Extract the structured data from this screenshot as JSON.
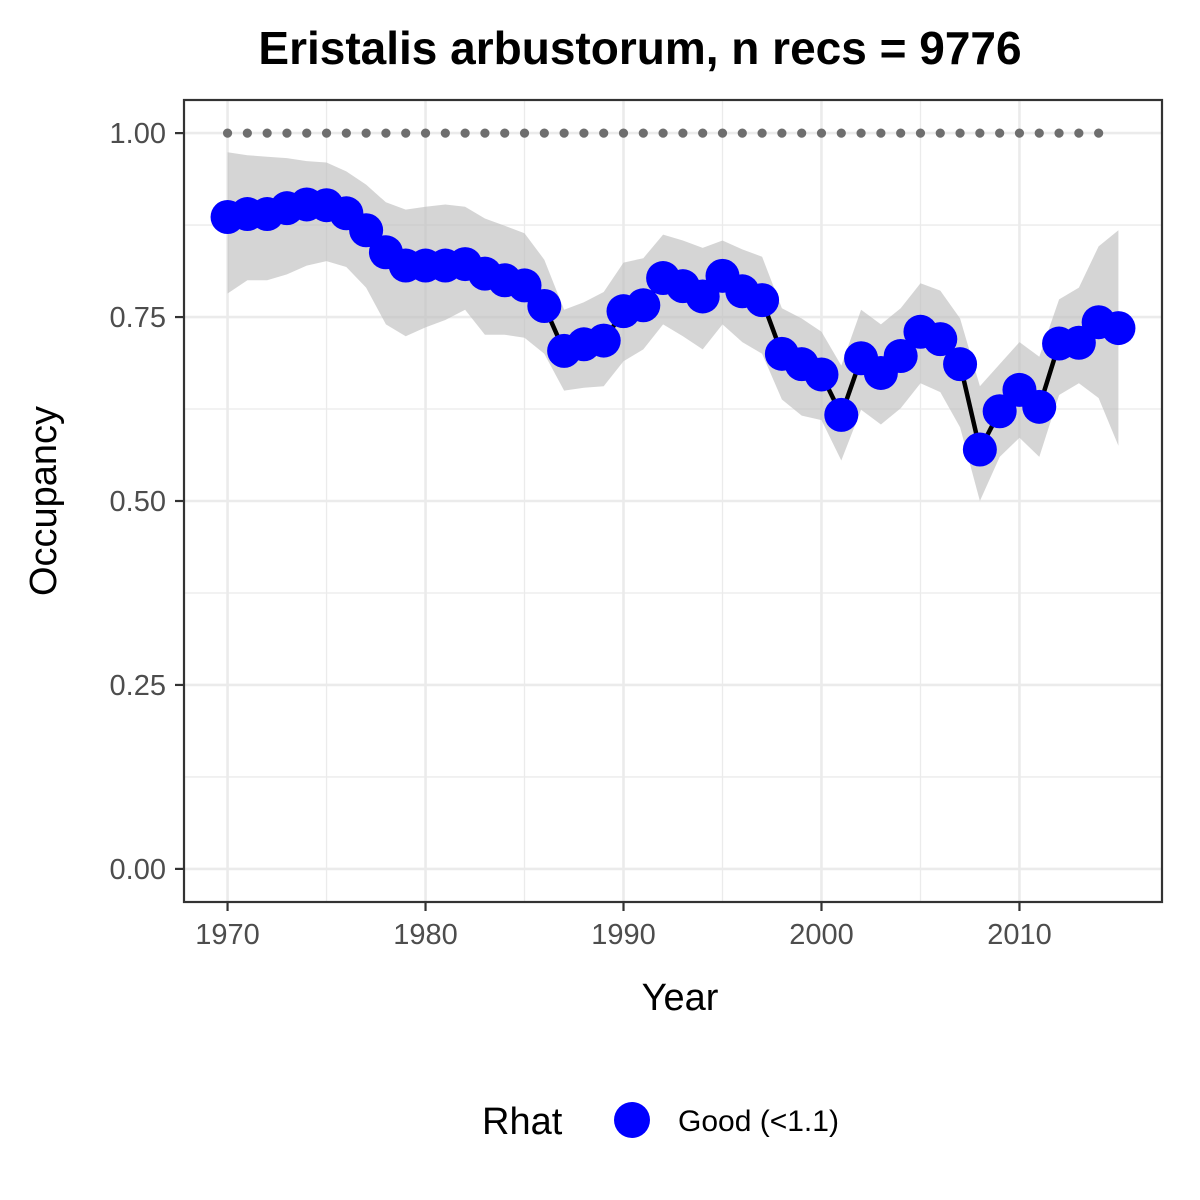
{
  "chart_data": {
    "type": "line",
    "title": "Eristalis arbustorum, n recs = 9776",
    "xlabel": "Year",
    "ylabel": "Occupancy",
    "xlim": [
      1967.8,
      2017.2
    ],
    "ylim": [
      -0.045,
      1.045
    ],
    "x_ticks": [
      1970,
      1980,
      1990,
      2000,
      2010
    ],
    "x_tick_labels": [
      "1970",
      "1980",
      "1990",
      "2000",
      "2010"
    ],
    "y_ticks": [
      0,
      0.25,
      0.5,
      0.75,
      1.0
    ],
    "y_tick_labels": [
      "0.00",
      "0.25",
      "0.50",
      "0.75",
      "1.00"
    ],
    "grid": true,
    "legend": {
      "title": "Rhat",
      "position": "bottom",
      "entries": [
        {
          "label": "Good (<1.1)",
          "color": "#0000ff"
        }
      ]
    },
    "colors": {
      "points": "#0000ff",
      "line": "#000000",
      "ribbon": "#bfbfbf",
      "dotted_reference": "#6e6e6e",
      "grid": "#ebebeb",
      "panel_border": "#333333"
    },
    "reference_line": {
      "y": 1.0,
      "x_start": 1970,
      "x_end": 2014,
      "style": "dotted"
    },
    "series": [
      {
        "x": [
          1970,
          1971,
          1972,
          1973,
          1974,
          1975,
          1976,
          1977,
          1978,
          1979,
          1980,
          1981,
          1982,
          1983,
          1984,
          1985,
          1986,
          1987,
          1988,
          1989,
          1990,
          1991,
          1992,
          1993,
          1994,
          1995,
          1996,
          1997,
          1998,
          1999,
          2000,
          2001,
          2002,
          2003,
          2004,
          2005,
          2006,
          2007,
          2008,
          2009,
          2010,
          2011,
          2012,
          2013,
          2014,
          2015
        ],
        "y": [
          0.886,
          0.89,
          0.89,
          0.898,
          0.903,
          0.902,
          0.891,
          0.868,
          0.838,
          0.82,
          0.82,
          0.82,
          0.822,
          0.809,
          0.8,
          0.793,
          0.765,
          0.704,
          0.713,
          0.718,
          0.758,
          0.766,
          0.803,
          0.792,
          0.778,
          0.806,
          0.785,
          0.773,
          0.7,
          0.686,
          0.672,
          0.617,
          0.694,
          0.674,
          0.697,
          0.73,
          0.72,
          0.686,
          0.57,
          0.622,
          0.651,
          0.628,
          0.714,
          0.715,
          0.743,
          0.735
        ],
        "lower": [
          0.782,
          0.8,
          0.8,
          0.808,
          0.82,
          0.826,
          0.818,
          0.79,
          0.74,
          0.724,
          0.736,
          0.746,
          0.76,
          0.726,
          0.726,
          0.722,
          0.7,
          0.65,
          0.654,
          0.656,
          0.69,
          0.706,
          0.74,
          0.724,
          0.706,
          0.74,
          0.716,
          0.7,
          0.638,
          0.616,
          0.61,
          0.555,
          0.624,
          0.604,
          0.626,
          0.66,
          0.648,
          0.6,
          0.5,
          0.56,
          0.586,
          0.56,
          0.644,
          0.66,
          0.64,
          0.575
        ],
        "upper": [
          0.974,
          0.97,
          0.968,
          0.966,
          0.962,
          0.96,
          0.948,
          0.93,
          0.906,
          0.896,
          0.9,
          0.903,
          0.9,
          0.884,
          0.874,
          0.864,
          0.828,
          0.76,
          0.77,
          0.784,
          0.824,
          0.83,
          0.862,
          0.854,
          0.844,
          0.854,
          0.842,
          0.832,
          0.762,
          0.748,
          0.73,
          0.684,
          0.76,
          0.74,
          0.762,
          0.796,
          0.786,
          0.748,
          0.656,
          0.686,
          0.716,
          0.696,
          0.774,
          0.79,
          0.846,
          0.868
        ]
      }
    ]
  }
}
